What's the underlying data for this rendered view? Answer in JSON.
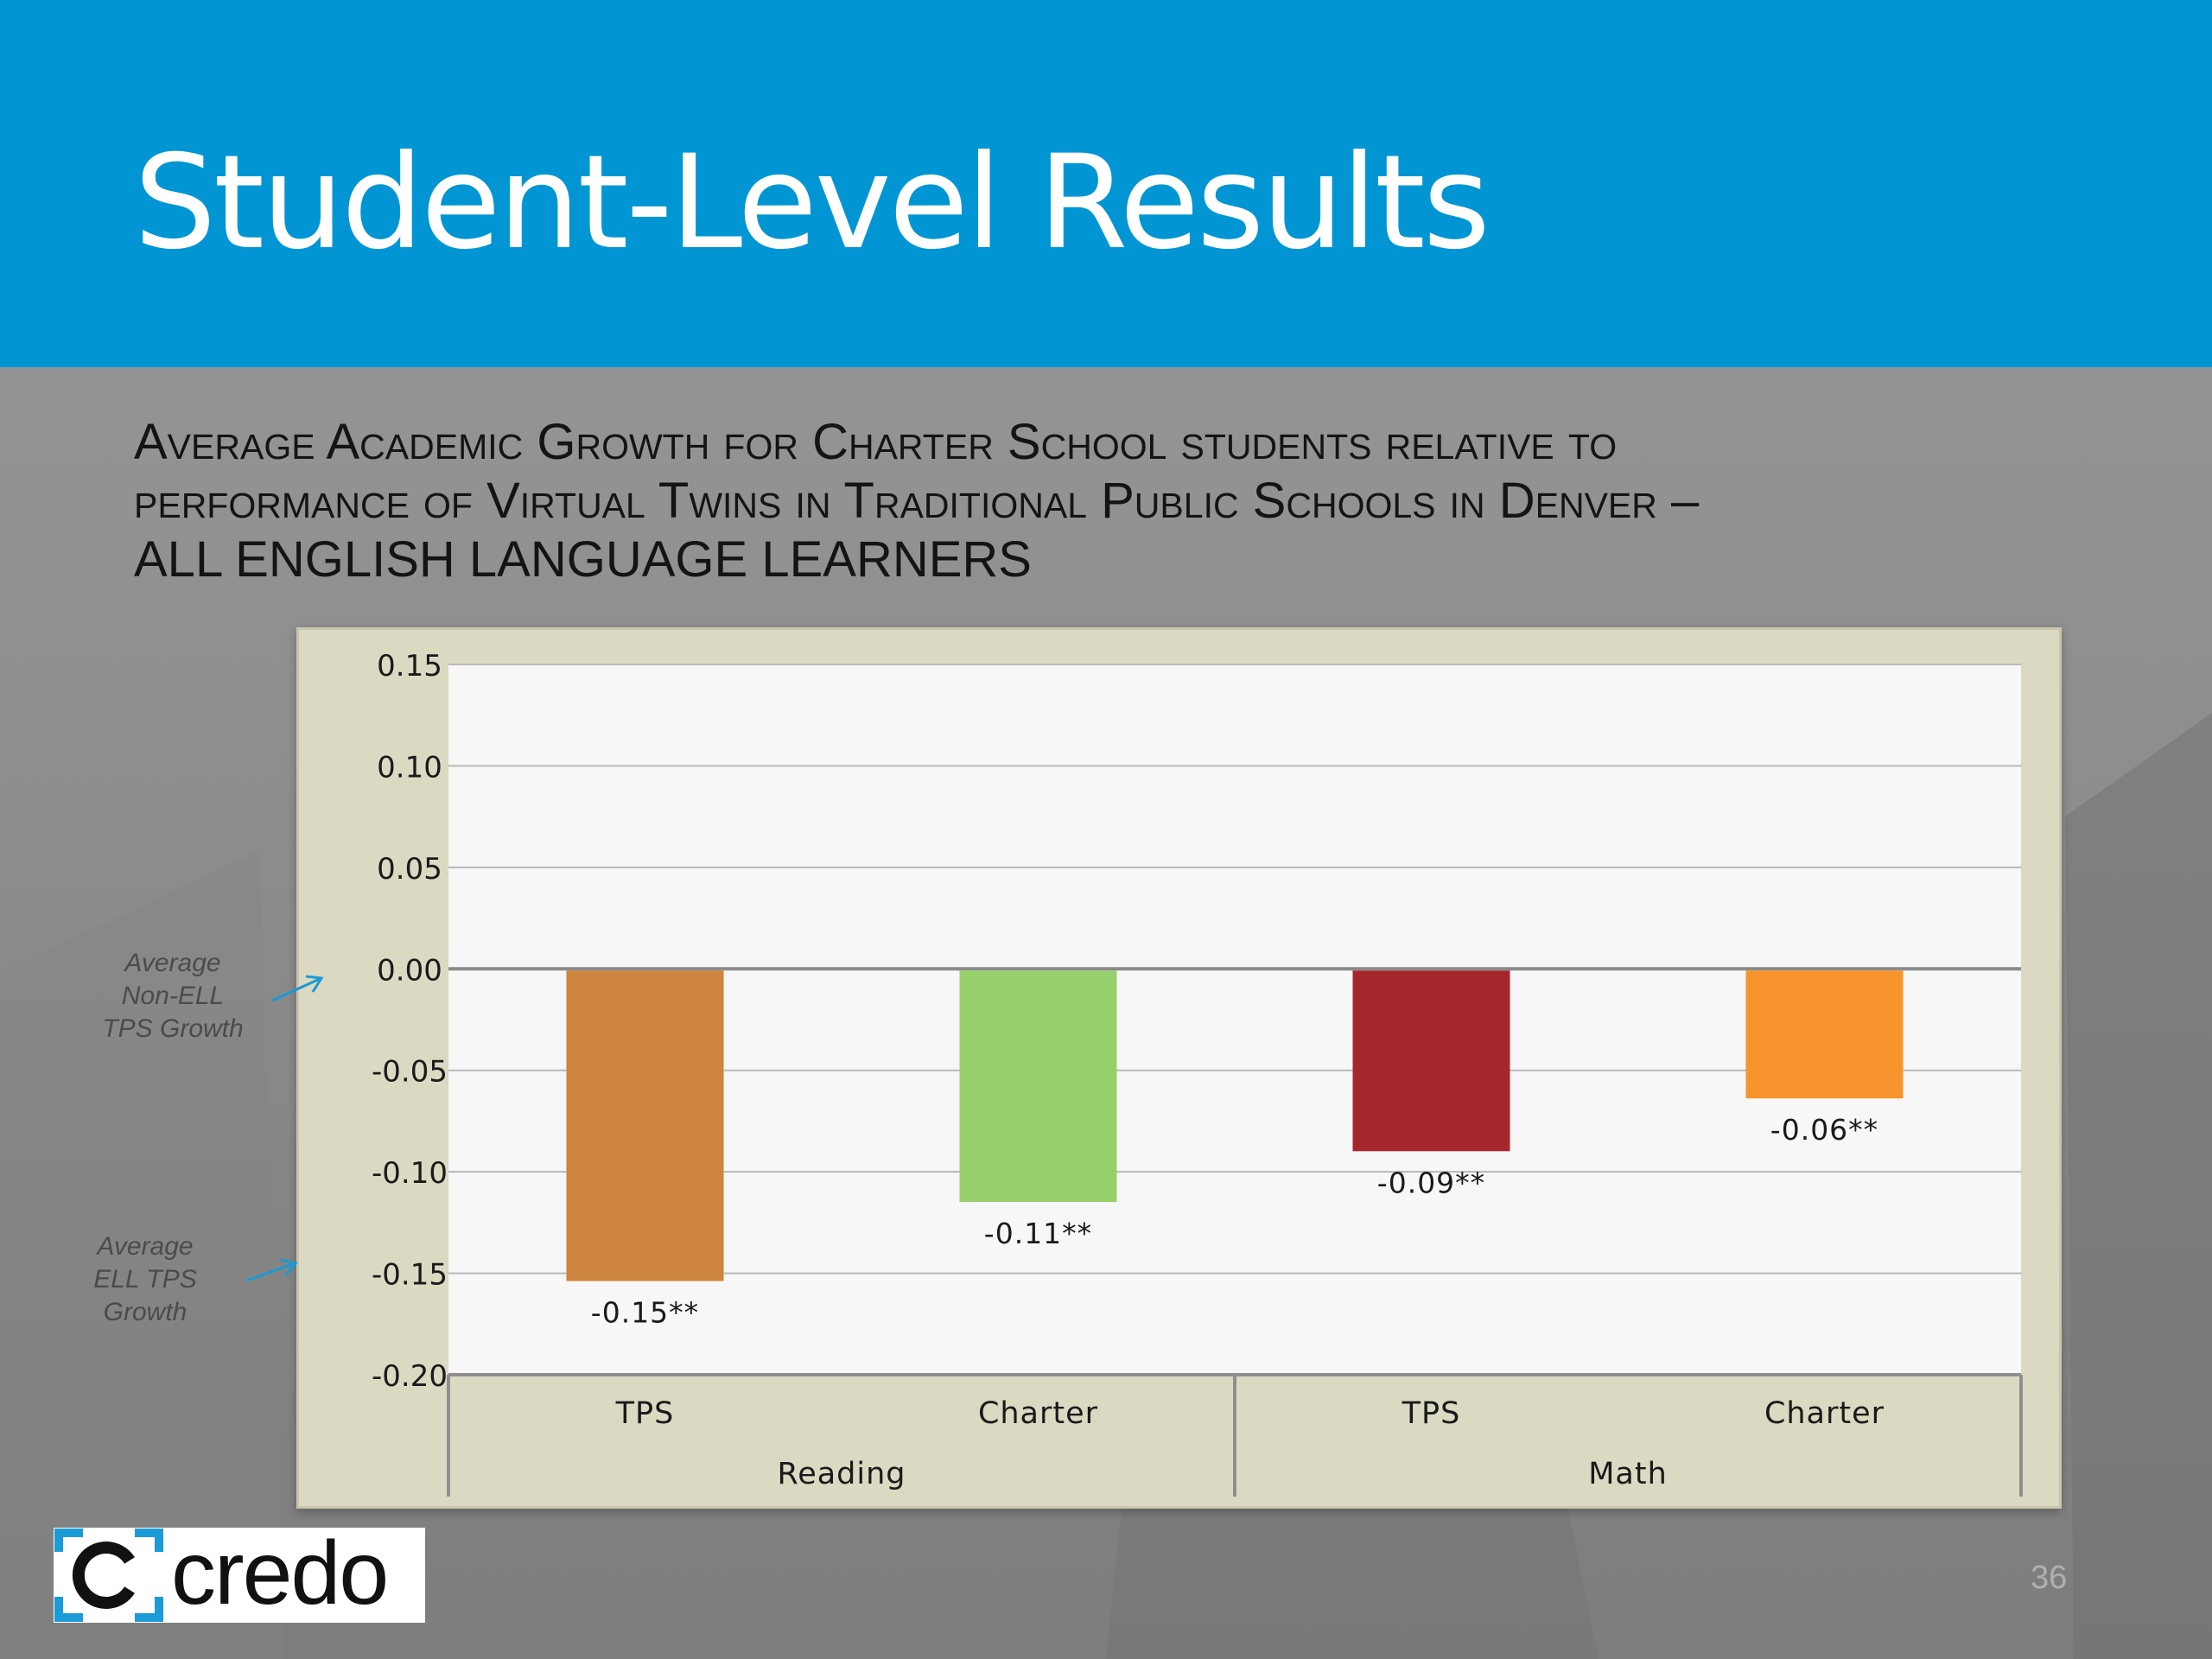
{
  "slide": {
    "title": "Student-Level Results",
    "subtitle_lines": [
      "Average Academic Growth for Charter School students relative to",
      "performance of Virtual Twins in Traditional Public Schools in Denver –",
      "ALL ENGLISH LANGUAGE LEARNERS"
    ],
    "page_number": "36",
    "logo_text": "credo",
    "header_color": "#0196d3"
  },
  "annotations": [
    {
      "lines": [
        "Average",
        "Non-ELL",
        "TPS Growth"
      ],
      "points_to": 0.0
    },
    {
      "lines": [
        "Average",
        "ELL TPS",
        "Growth"
      ],
      "points_to": -0.15
    }
  ],
  "chart_data": {
    "type": "bar",
    "ylim": [
      -0.2,
      0.15
    ],
    "yticks": [
      "0.15",
      "0.10",
      "0.05",
      "0.00",
      "-0.05",
      "-0.10",
      "-0.15",
      "-0.20"
    ],
    "grid": true,
    "categories": [
      "TPS",
      "Charter",
      "TPS",
      "Charter"
    ],
    "groups": [
      {
        "label": "Reading",
        "categories": [
          "TPS",
          "Charter"
        ]
      },
      {
        "label": "Math",
        "categories": [
          "TPS",
          "Charter"
        ]
      }
    ],
    "values": [
      -0.153,
      -0.114,
      -0.089,
      -0.063
    ],
    "data_labels": [
      "-0.15**",
      "-0.11**",
      "-0.09**",
      "-0.06**"
    ],
    "colors": [
      "#cd853f",
      "#97d06b",
      "#a5272c",
      "#f7942d"
    ]
  }
}
